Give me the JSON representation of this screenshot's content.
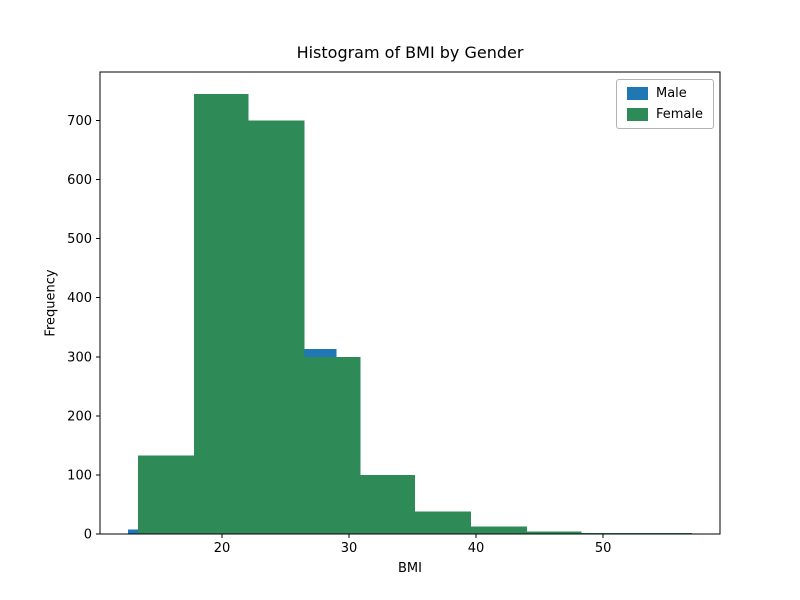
{
  "chart_data": {
    "type": "histogram",
    "title": "Histogram of BMI by Gender",
    "xlabel": "BMI",
    "ylabel": "Frequency",
    "xlim": [
      10.4,
      59.2
    ],
    "ylim": [
      0,
      782
    ],
    "xticks": [
      20,
      30,
      40,
      50
    ],
    "yticks": [
      0,
      100,
      200,
      300,
      400,
      500,
      600,
      700
    ],
    "grid": false,
    "legend_position": "upper right",
    "series": [
      {
        "name": "Male",
        "color": "#1f77b4",
        "bin_edges": [
          12.6,
          16.7,
          20.8,
          24.9,
          29.0,
          33.1,
          37.2,
          41.3,
          45.4,
          49.5,
          53.6
        ],
        "counts": [
          8,
          125,
          680,
          313,
          95,
          35,
          12,
          3,
          2,
          1
        ]
      },
      {
        "name": "Female",
        "color": "#2e8b57",
        "bin_edges": [
          13.4,
          17.8,
          22.1,
          26.5,
          30.9,
          35.2,
          39.6,
          44.0,
          48.3,
          52.7,
          57.0
        ],
        "counts": [
          133,
          745,
          700,
          300,
          100,
          38,
          13,
          4,
          2,
          2
        ]
      }
    ]
  }
}
